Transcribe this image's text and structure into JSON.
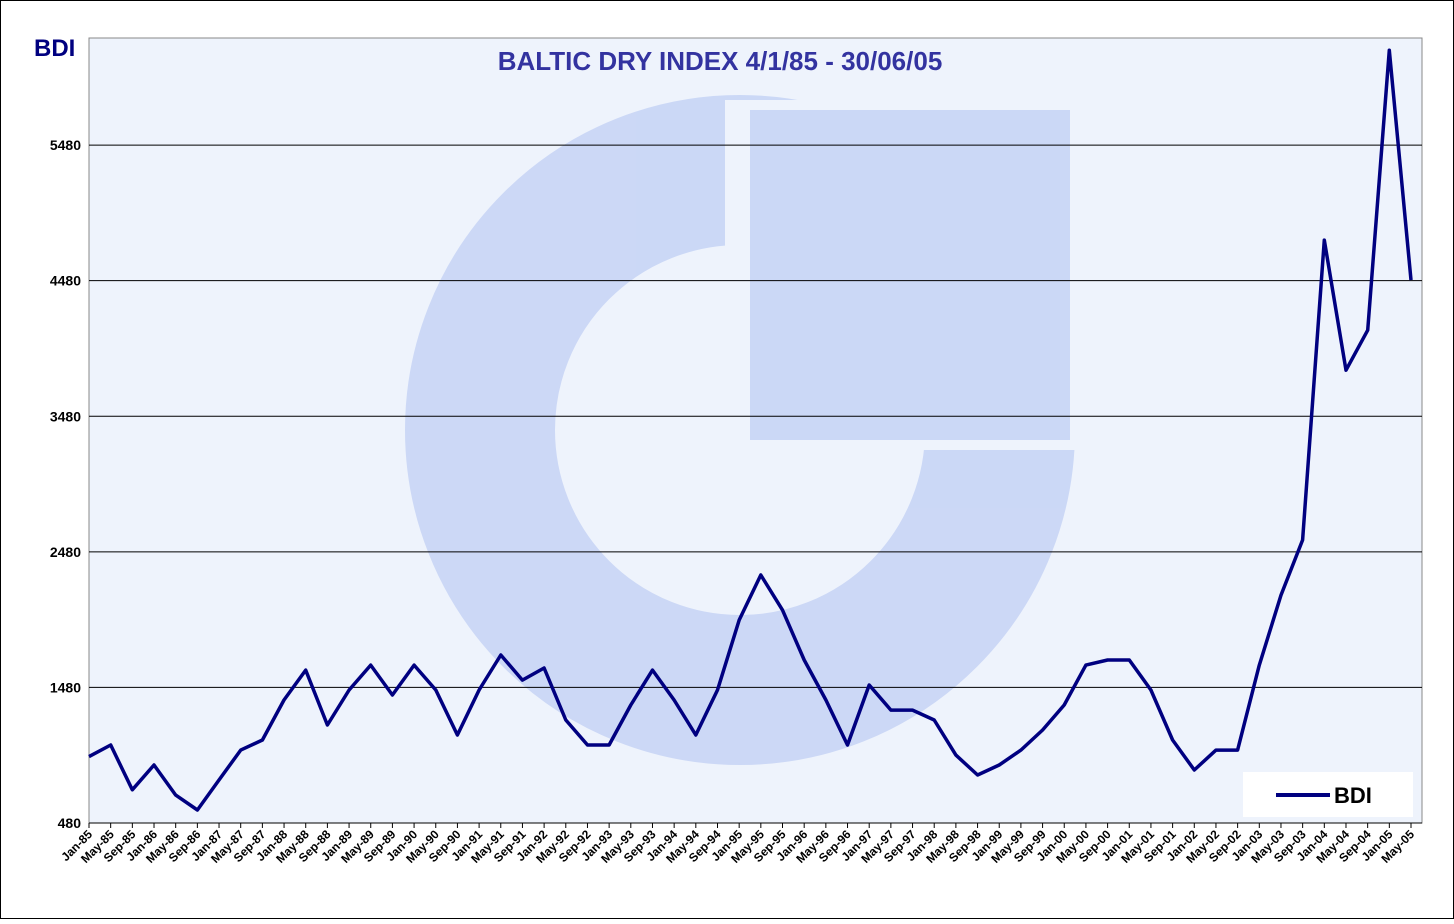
{
  "chart_data": {
    "type": "line",
    "title": "BALTIC DRY INDEX 4/1/85 - 30/06/05",
    "y_label": "BDI",
    "categories": [
      "Jan-85",
      "May-85",
      "Sep-85",
      "Jan-86",
      "May-86",
      "Sep-86",
      "Jan-87",
      "May-87",
      "Sep-87",
      "Jan-88",
      "May-88",
      "Sep-88",
      "Jan-89",
      "May-89",
      "Sep-89",
      "Jan-90",
      "May-90",
      "Sep-90",
      "Jan-91",
      "May-91",
      "Sep-91",
      "Jan-92",
      "May-92",
      "Sep-92",
      "Jan-93",
      "May-93",
      "Sep-93",
      "Jan-94",
      "May-94",
      "Sep-94",
      "Jan-95",
      "May-95",
      "Sep-95",
      "Jan-96",
      "May-96",
      "Sep-96",
      "Jan-97",
      "May-97",
      "Sep-97",
      "Jan-98",
      "May-98",
      "Sep-98",
      "Jan-99",
      "May-99",
      "Sep-99",
      "Jan-00",
      "May-00",
      "Sep-00",
      "Jan-01",
      "May-01",
      "Sep-01",
      "Jan-02",
      "May-02",
      "Sep-02",
      "Jan-03",
      "May-03",
      "Sep-03",
      "Jan-04",
      "May-04",
      "Sep-04",
      "Jan-05",
      "May-05"
    ],
    "series": [
      {
        "name": "BDI",
        "color": "#000080",
        "values": [
          970,
          1055,
          725,
          908,
          686,
          576,
          797,
          1018,
          1092,
          1387,
          1608,
          1203,
          1461,
          1645,
          1424,
          1645,
          1461,
          1129,
          1461,
          1719,
          1534,
          1623,
          1240,
          1055,
          1055,
          1350,
          1608,
          1387,
          1129,
          1461,
          1977,
          2309,
          2050,
          1682,
          1387,
          1055,
          1498,
          1313,
          1313,
          1240,
          981,
          834,
          908,
          1018,
          1166,
          1350,
          1645,
          1682,
          1682,
          1461,
          1092,
          871,
          1018,
          1018,
          1645,
          2161,
          2567,
          4779,
          3820,
          4115,
          6180,
          4484
        ]
      }
    ],
    "ylim": [
      480,
      6270
    ],
    "yticks": [
      480,
      1480,
      2480,
      3480,
      4480,
      5480
    ],
    "grid": true,
    "legend": "bottom-right"
  }
}
